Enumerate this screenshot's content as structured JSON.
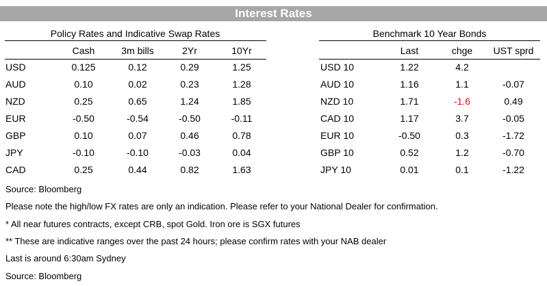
{
  "title": "Interest Rates",
  "policy": {
    "heading": "Policy Rates and Indicative Swap Rates",
    "columns": [
      "Cash",
      "3m bills",
      "2Yr",
      "10Yr"
    ],
    "rows": [
      {
        "label": "USD",
        "values": [
          "0.125",
          "0.12",
          "0.29",
          "1.25"
        ]
      },
      {
        "label": "AUD",
        "values": [
          "0.10",
          "0.02",
          "0.23",
          "1.28"
        ]
      },
      {
        "label": "NZD",
        "values": [
          "0.25",
          "0.65",
          "1.24",
          "1.85"
        ]
      },
      {
        "label": "EUR",
        "values": [
          "-0.50",
          "-0.54",
          "-0.50",
          "-0.11"
        ]
      },
      {
        "label": "GBP",
        "values": [
          "0.10",
          "0.07",
          "0.46",
          "0.78"
        ]
      },
      {
        "label": "JPY",
        "values": [
          "-0.10",
          "-0.10",
          "-0.03",
          "0.04"
        ]
      },
      {
        "label": "CAD",
        "values": [
          "0.25",
          "0.44",
          "0.82",
          "1.63"
        ]
      }
    ]
  },
  "bonds": {
    "heading": "Benchmark 10 Year Bonds",
    "columns": [
      "Last",
      "chge",
      "UST sprd"
    ],
    "rows": [
      {
        "label": "USD 10",
        "values": [
          "1.22",
          "4.2",
          ""
        ]
      },
      {
        "label": "AUD 10",
        "values": [
          "1.16",
          "1.1",
          "-0.07"
        ]
      },
      {
        "label": "NZD 10",
        "values": [
          "1.71",
          "-1.6",
          "0.49"
        ]
      },
      {
        "label": "CAD 10",
        "values": [
          "1.17",
          "3.7",
          "-0.05"
        ]
      },
      {
        "label": "EUR 10",
        "values": [
          "-0.50",
          "0.3",
          "-1.72"
        ]
      },
      {
        "label": "GBP 10",
        "values": [
          "0.52",
          "1.2",
          "-0.70"
        ]
      },
      {
        "label": "JPY 10",
        "values": [
          "0.01",
          "0.1",
          "-1.22"
        ]
      }
    ],
    "highlight_color": "#e30613"
  },
  "notes": [
    "Source: Bloomberg",
    "Please note the high/low FX rates are only an indication. Please refer to your National Dealer for confirmation.",
    "* All near futures contracts, except CRB, spot Gold.  Iron ore is SGX futures",
    "** These are indicative ranges over the past 24 hours; please confirm rates with your NAB dealer",
    "Last is around 6:30am Sydney",
    "Source: Bloomberg"
  ],
  "colors": {
    "banner": "#a6a6a6",
    "banner_text": "#ffffff"
  }
}
